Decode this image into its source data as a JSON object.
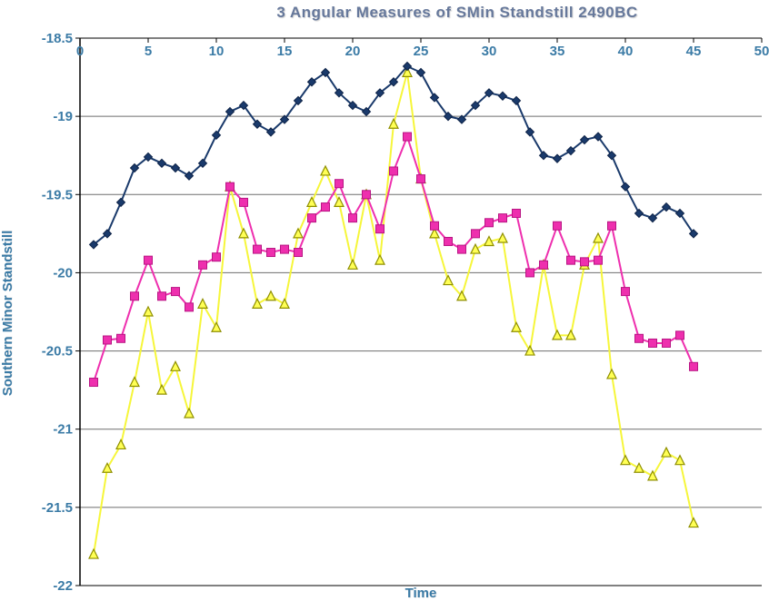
{
  "chart_data": {
    "type": "line",
    "title": "3 Angular Measures of SMin Standstill 2490BC",
    "xlabel": "Time",
    "ylabel": "Southern Minor Standstill",
    "xlim": [
      0,
      50
    ],
    "ylim": [
      -22,
      -18.5
    ],
    "x_ticks": [
      0,
      5,
      10,
      15,
      20,
      25,
      30,
      35,
      40,
      45,
      50
    ],
    "y_ticks": [
      -18.5,
      -19,
      -19.5,
      -20,
      -20.5,
      -21,
      -21.5,
      -22
    ],
    "grid": "horizontal",
    "legend": "none",
    "axis_text_color": "#3b7ba6",
    "grid_color": "#6e6e6e",
    "axis_color": "#000000",
    "x": [
      1,
      2,
      3,
      4,
      5,
      6,
      7,
      8,
      9,
      10,
      11,
      12,
      13,
      14,
      15,
      16,
      17,
      18,
      19,
      20,
      21,
      22,
      23,
      24,
      25,
      26,
      27,
      28,
      29,
      30,
      31,
      32,
      33,
      34,
      35,
      36,
      37,
      38,
      39,
      40,
      41,
      42,
      43,
      44,
      45
    ],
    "series": [
      {
        "name": "yellow-triangle-series",
        "color": "#f6f63a",
        "marker": "triangle",
        "marker_fill": "#ffff55",
        "marker_stroke": "#8f8f00",
        "values": [
          -21.8,
          -21.25,
          -21.1,
          -20.7,
          -20.25,
          -20.75,
          -20.6,
          -20.9,
          -20.2,
          -20.35,
          -19.45,
          -19.75,
          -20.2,
          -20.15,
          -20.2,
          -19.75,
          -19.55,
          -19.35,
          -19.55,
          -19.95,
          -19.5,
          -19.92,
          -19.05,
          -18.72,
          -19.4,
          -19.75,
          -20.05,
          -20.15,
          -19.85,
          -19.8,
          -19.78,
          -20.35,
          -20.5,
          -19.95,
          -20.4,
          -20.4,
          -19.95,
          -19.78,
          -20.65,
          -21.2,
          -21.25,
          -21.3,
          -21.15,
          -21.2,
          -21.6
        ]
      },
      {
        "name": "magenta-square-series",
        "color": "#ee2fae",
        "marker": "square",
        "marker_fill": "#ee2fae",
        "marker_stroke": "#b81583",
        "values": [
          -20.7,
          -20.43,
          -20.42,
          -20.15,
          -19.92,
          -20.15,
          -20.12,
          -20.22,
          -19.95,
          -19.9,
          -19.45,
          -19.55,
          -19.85,
          -19.87,
          -19.85,
          -19.87,
          -19.65,
          -19.58,
          -19.43,
          -19.65,
          -19.5,
          -19.72,
          -19.35,
          -19.13,
          -19.4,
          -19.7,
          -19.8,
          -19.85,
          -19.75,
          -19.68,
          -19.65,
          -19.62,
          -20.0,
          -19.95,
          -19.7,
          -19.92,
          -19.93,
          -19.92,
          -19.7,
          -20.12,
          -20.42,
          -20.45,
          -20.45,
          -20.4,
          -20.6
        ]
      },
      {
        "name": "blue-diamond-series",
        "color": "#1a3a6b",
        "marker": "diamond",
        "marker_fill": "#1a3a6b",
        "marker_stroke": "#0e2347",
        "values": [
          -19.82,
          -19.75,
          -19.55,
          -19.33,
          -19.26,
          -19.3,
          -19.33,
          -19.38,
          -19.3,
          -19.12,
          -18.97,
          -18.93,
          -19.05,
          -19.1,
          -19.02,
          -18.9,
          -18.78,
          -18.72,
          -18.85,
          -18.93,
          -18.97,
          -18.85,
          -18.78,
          -18.68,
          -18.72,
          -18.88,
          -19.0,
          -19.02,
          -18.93,
          -18.85,
          -18.87,
          -18.9,
          -19.1,
          -19.25,
          -19.27,
          -19.22,
          -19.15,
          -19.13,
          -19.25,
          -19.45,
          -19.62,
          -19.65,
          -19.58,
          -19.62,
          -19.75
        ]
      }
    ]
  }
}
